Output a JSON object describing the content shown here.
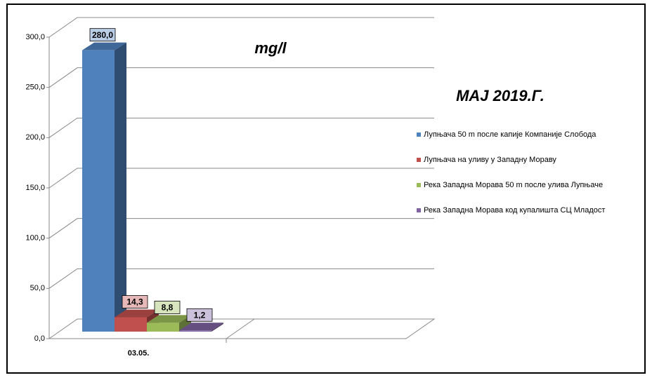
{
  "chart_data": {
    "type": "bar3d",
    "title": "mg/l",
    "subtitle": "МАЈ 2019.Г.",
    "categories": [
      "03.05."
    ],
    "series": [
      {
        "name": "Лупњача 50 m после капије Компаније Слобода",
        "color": "#4f81bd",
        "values": [
          280.0
        ],
        "value_labels": [
          "280,0"
        ]
      },
      {
        "name": "Лупњача на уливу у Западну Мораву",
        "color": "#c0504d",
        "values": [
          14.3
        ],
        "value_labels": [
          "14,3"
        ]
      },
      {
        "name": "Река Западна Морава 50 m после улива Лупњаче",
        "color": "#9bbb59",
        "values": [
          8.8
        ],
        "value_labels": [
          "8,8"
        ]
      },
      {
        "name": "Река Западна Морава код купалишта СЦ Младост",
        "color": "#8064a2",
        "values": [
          1.2
        ],
        "value_labels": [
          "1,2"
        ]
      }
    ],
    "ylim": [
      0,
      300
    ],
    "yticks": [
      {
        "value": 0,
        "label": "0,0"
      },
      {
        "value": 50,
        "label": "50,0"
      },
      {
        "value": 100,
        "label": "100,0"
      },
      {
        "value": 150,
        "label": "150,0"
      },
      {
        "value": 200,
        "label": "200,0"
      },
      {
        "value": 250,
        "label": "250,0"
      },
      {
        "value": 300,
        "label": "300,0"
      }
    ],
    "grid": true,
    "legend": "right"
  }
}
